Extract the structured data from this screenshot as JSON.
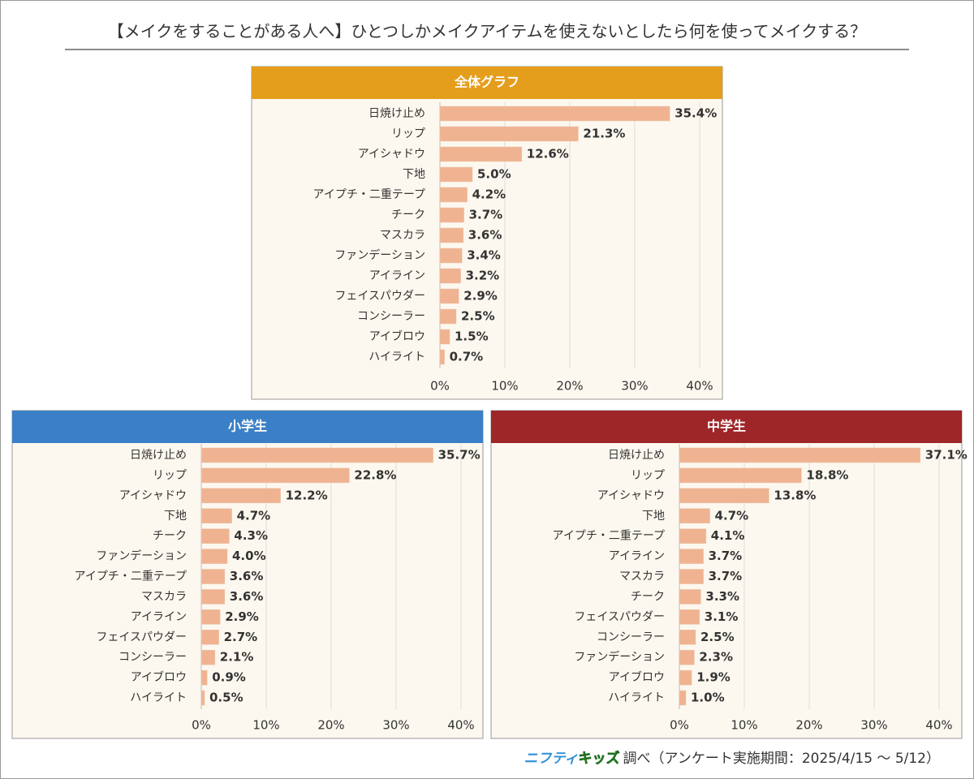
{
  "title": "【メイクをすることがある人へ】ひとつしかメイクアイテムを使えないとしたら何を使ってメイクする？",
  "source": {
    "brand_1": "ニフティ",
    "brand_2": "キッズ",
    "text": "調べ（アンケート実施期間：2025/4/15 ～ 5/12）"
  },
  "chart_data": [
    {
      "type": "bar",
      "orientation": "horizontal",
      "title": "全体グラフ",
      "header_color": "#e59e1c",
      "color": "#f0b392",
      "grid": true,
      "categories": [
        "日焼け止め",
        "リップ",
        "アイシャドウ",
        "下地",
        "アイプチ・二重テープ",
        "チーク",
        "マスカラ",
        "ファンデーション",
        "アイライン",
        "フェイスパウダー",
        "コンシーラー",
        "アイブロウ",
        "ハイライト"
      ],
      "values": [
        35.4,
        21.3,
        12.6,
        5.0,
        4.2,
        3.7,
        3.6,
        3.4,
        3.2,
        2.9,
        2.5,
        1.5,
        0.7
      ],
      "value_labels": [
        "35.4%",
        "21.3%",
        "12.6%",
        "5.0%",
        "4.2%",
        "3.7%",
        "3.6%",
        "3.4%",
        "3.2%",
        "2.9%",
        "2.5%",
        "1.5%",
        "0.7%"
      ],
      "xlim": [
        0,
        40
      ],
      "xticks": [
        {
          "value": 0,
          "label": "0%"
        },
        {
          "value": 10,
          "label": "10%"
        },
        {
          "value": 20,
          "label": "20%"
        },
        {
          "value": 30,
          "label": "30%"
        },
        {
          "value": 40,
          "label": "40%"
        }
      ]
    },
    {
      "type": "bar",
      "orientation": "horizontal",
      "title": "小学生",
      "header_color": "#3b80c6",
      "color": "#f0b392",
      "grid": true,
      "categories": [
        "日焼け止め",
        "リップ",
        "アイシャドウ",
        "下地",
        "チーク",
        "ファンデーション",
        "アイプチ・二重テープ",
        "マスカラ",
        "アイライン",
        "フェイスパウダー",
        "コンシーラー",
        "アイブロウ",
        "ハイライト"
      ],
      "values": [
        35.7,
        22.8,
        12.2,
        4.7,
        4.3,
        4.0,
        3.6,
        3.6,
        2.9,
        2.7,
        2.1,
        0.9,
        0.5
      ],
      "value_labels": [
        "35.7%",
        "22.8%",
        "12.2%",
        "4.7%",
        "4.3%",
        "4.0%",
        "3.6%",
        "3.6%",
        "2.9%",
        "2.7%",
        "2.1%",
        "0.9%",
        "0.5%"
      ],
      "xlim": [
        0,
        40
      ],
      "xticks": [
        {
          "value": 0,
          "label": "0%"
        },
        {
          "value": 10,
          "label": "10%"
        },
        {
          "value": 20,
          "label": "20%"
        },
        {
          "value": 30,
          "label": "30%"
        },
        {
          "value": 40,
          "label": "40%"
        }
      ]
    },
    {
      "type": "bar",
      "orientation": "horizontal",
      "title": "中学生",
      "header_color": "#9e2628",
      "color": "#f0b392",
      "grid": true,
      "categories": [
        "日焼け止め",
        "リップ",
        "アイシャドウ",
        "下地",
        "アイプチ・二重テープ",
        "アイライン",
        "マスカラ",
        "チーク",
        "フェイスパウダー",
        "コンシーラー",
        "ファンデーション",
        "アイブロウ",
        "ハイライト"
      ],
      "values": [
        37.1,
        18.8,
        13.8,
        4.7,
        4.1,
        3.7,
        3.7,
        3.3,
        3.1,
        2.5,
        2.3,
        1.9,
        1.0
      ],
      "value_labels": [
        "37.1%",
        "18.8%",
        "13.8%",
        "4.7%",
        "4.1%",
        "3.7%",
        "3.7%",
        "3.3%",
        "3.1%",
        "2.5%",
        "2.3%",
        "1.9%",
        "1.0%"
      ],
      "xlim": [
        0,
        40
      ],
      "xticks": [
        {
          "value": 0,
          "label": "0%"
        },
        {
          "value": 10,
          "label": "10%"
        },
        {
          "value": 20,
          "label": "20%"
        },
        {
          "value": 30,
          "label": "30%"
        },
        {
          "value": 40,
          "label": "40%"
        }
      ]
    }
  ]
}
